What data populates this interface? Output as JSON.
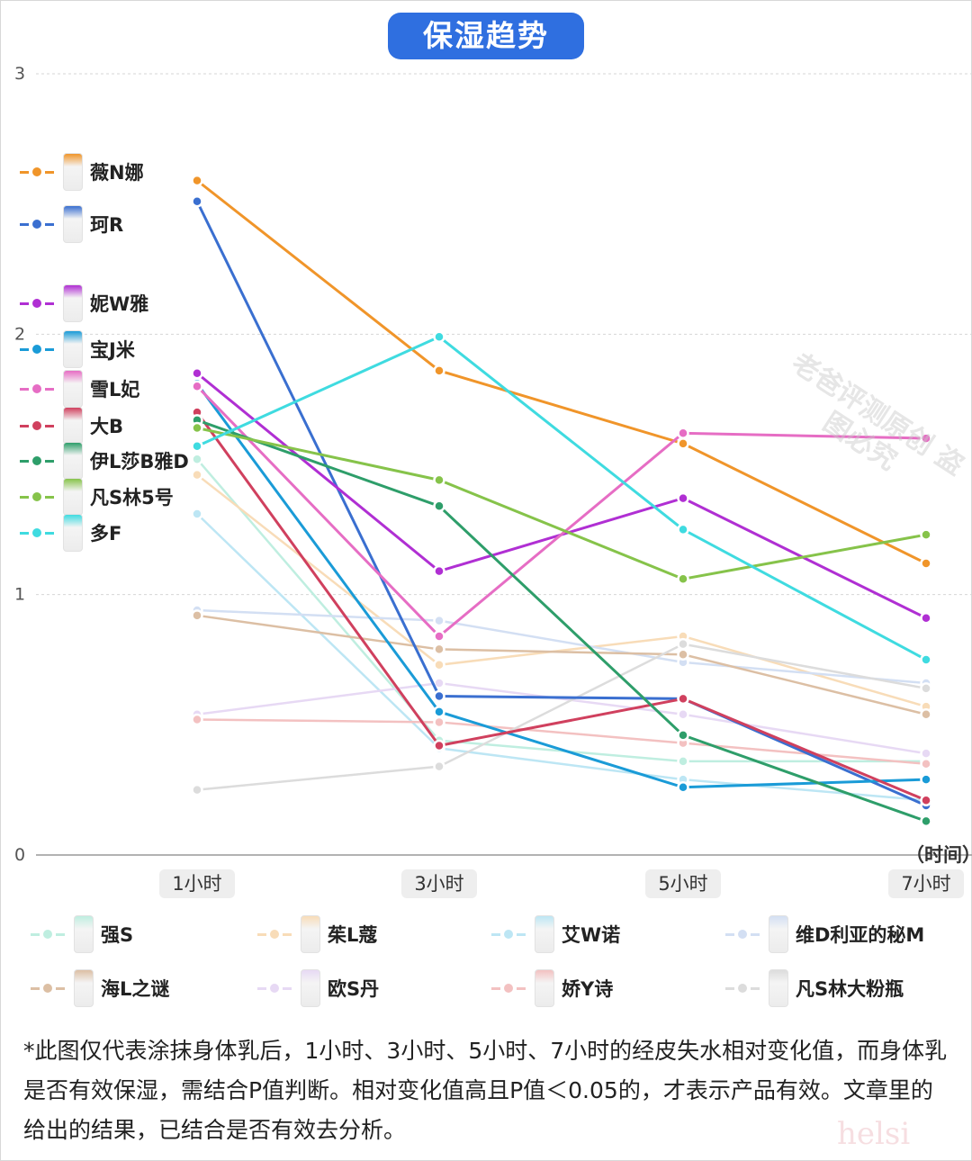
{
  "title": "保湿趋势",
  "x_unit": "（时间）",
  "footnote": "*此图仅代表涂抹身体乳后，1小时、3小时、5小时、7小时的经皮失水相对变化值，而身体乳是否有效保湿，需结合P值判断。相对变化值高且P值＜0.05的，才表示产品有效。文章里的给出的结果，已结合是否有效去分析。",
  "watermark": "老爸评测原创 盗图必究",
  "chart_data": {
    "type": "line",
    "categories": [
      "1小时",
      "3小时",
      "5小时",
      "7小时"
    ],
    "ylim": [
      0,
      3
    ],
    "yticks": [
      0,
      1,
      2,
      3
    ],
    "grid": true,
    "series": [
      {
        "name": "薇N娜",
        "color": "#f0952a",
        "values": [
          2.59,
          1.86,
          1.58,
          1.12
        ],
        "faded": false,
        "legend": "top"
      },
      {
        "name": "珂R",
        "color": "#3a6fd0",
        "values": [
          2.51,
          0.61,
          0.6,
          0.19
        ],
        "faded": false,
        "legend": "top"
      },
      {
        "name": "妮W雅",
        "color": "#b02fd3",
        "values": [
          1.85,
          1.09,
          1.37,
          0.91
        ],
        "faded": false,
        "legend": "top"
      },
      {
        "name": "宝J米",
        "color": "#1a9bd7",
        "values": [
          1.81,
          0.55,
          0.26,
          0.29
        ],
        "faded": false,
        "legend": "top"
      },
      {
        "name": "雪L妃",
        "color": "#e66dc4",
        "values": [
          1.8,
          0.84,
          1.62,
          1.6
        ],
        "faded": false,
        "legend": "top"
      },
      {
        "name": "大B",
        "color": "#d0405e",
        "values": [
          1.7,
          0.42,
          0.6,
          0.21
        ],
        "faded": false,
        "legend": "top"
      },
      {
        "name": "伊L莎B雅D",
        "color": "#2e9e6a",
        "values": [
          1.67,
          1.34,
          0.46,
          0.13
        ],
        "faded": false,
        "legend": "top"
      },
      {
        "name": "凡S林5号",
        "color": "#86c34a",
        "values": [
          1.64,
          1.44,
          1.06,
          1.23
        ],
        "faded": false,
        "legend": "top"
      },
      {
        "name": "多F",
        "color": "#3fdbe0",
        "values": [
          1.57,
          1.99,
          1.25,
          0.75
        ],
        "faded": false,
        "legend": "top"
      },
      {
        "name": "强S",
        "color": "#bfeee0",
        "values": [
          1.52,
          0.44,
          0.36,
          0.36
        ],
        "faded": true,
        "legend": "bottom"
      },
      {
        "name": "茱L蔻",
        "color": "#f8dcb8",
        "values": [
          1.46,
          0.73,
          0.84,
          0.57
        ],
        "faded": true,
        "legend": "bottom"
      },
      {
        "name": "艾W诺",
        "color": "#bde6f4",
        "values": [
          1.31,
          0.41,
          0.29,
          0.21
        ],
        "faded": true,
        "legend": "bottom"
      },
      {
        "name": "维D利亚的秘M",
        "color": "#d3dff3",
        "values": [
          0.94,
          0.9,
          0.74,
          0.66
        ],
        "faded": true,
        "legend": "bottom"
      },
      {
        "name": "海L之谜",
        "color": "#dcbfa4",
        "values": [
          0.92,
          0.79,
          0.77,
          0.54
        ],
        "faded": true,
        "legend": "bottom"
      },
      {
        "name": "欧S丹",
        "color": "#e7d9f4",
        "values": [
          0.54,
          0.66,
          0.54,
          0.39
        ],
        "faded": true,
        "legend": "bottom"
      },
      {
        "name": "娇Y诗",
        "color": "#f3c1c1",
        "values": [
          0.52,
          0.51,
          0.43,
          0.35
        ],
        "faded": true,
        "legend": "bottom"
      },
      {
        "name": "凡S林大粉瓶",
        "color": "#dcdcdc",
        "values": [
          0.25,
          0.34,
          0.81,
          0.64
        ],
        "faded": true,
        "legend": "bottom"
      }
    ]
  }
}
